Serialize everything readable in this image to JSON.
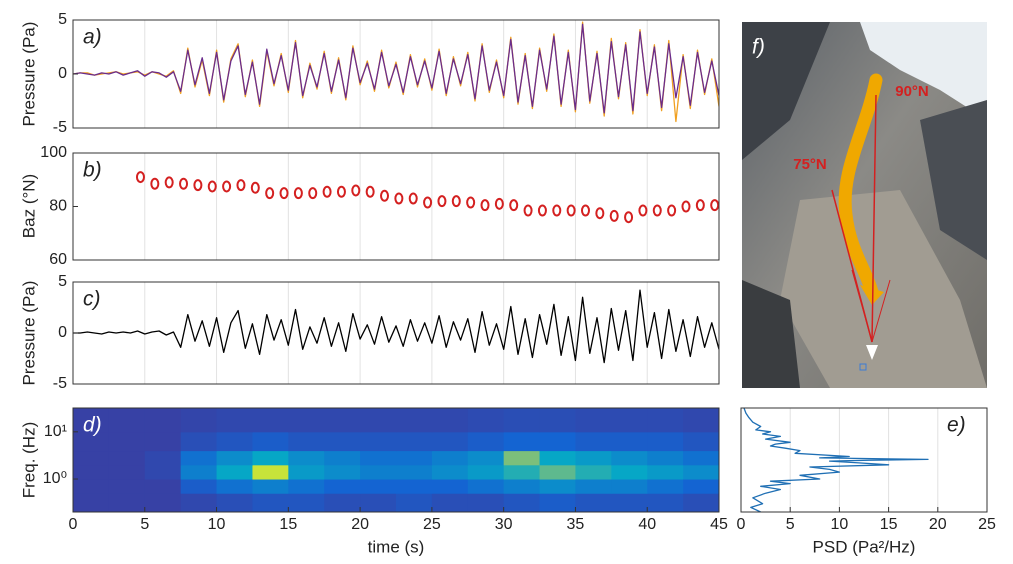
{
  "chart_data": [
    {
      "type": "line",
      "panel_label": "a)",
      "ylabel": "Pressure (Pa)",
      "xlim": [
        0,
        45
      ],
      "ylim": [
        -5,
        5
      ],
      "yticks": [
        -5,
        0,
        5
      ],
      "grid": true,
      "x": [
        0,
        0.5,
        1,
        1.5,
        2,
        2.5,
        3,
        3.5,
        4,
        4.5,
        5,
        5.5,
        6,
        6.5,
        7,
        7.5,
        8,
        8.5,
        9,
        9.5,
        10,
        10.5,
        11,
        11.5,
        12,
        12.5,
        13,
        13.5,
        14,
        14.5,
        15,
        15.5,
        16,
        16.5,
        17,
        17.5,
        18,
        18.5,
        19,
        19.5,
        20,
        20.5,
        21,
        21.5,
        22,
        22.5,
        23,
        23.5,
        24,
        24.5,
        25,
        25.5,
        26,
        26.5,
        27,
        27.5,
        28,
        28.5,
        29,
        29.5,
        30,
        30.5,
        31,
        31.5,
        32,
        32.5,
        33,
        33.5,
        34,
        34.5,
        35,
        35.5,
        36,
        36.5,
        37,
        37.5,
        38,
        38.5,
        39,
        39.5,
        40,
        40.5,
        41,
        41.5,
        42,
        42.5,
        43,
        43.5,
        44,
        44.5,
        45
      ],
      "series": [
        {
          "color": "#f0a020",
          "values": [
            0,
            0.1,
            0.1,
            -0.1,
            0,
            0.1,
            0.2,
            0,
            0.1,
            0.2,
            -0.1,
            0.2,
            0,
            -0.2,
            0.3,
            -1.8,
            2.4,
            -1.2,
            1.3,
            -2.0,
            2.2,
            -2.6,
            1.4,
            2.8,
            -2.1,
            1.3,
            -3.0,
            2.1,
            -1.1,
            1.9,
            -1.7,
            3.1,
            -2.2,
            1.0,
            -1.4,
            2.1,
            -1.8,
            1.5,
            -2.4,
            2.6,
            -1.0,
            1.2,
            -1.6,
            2.2,
            -1.3,
            1.1,
            -1.9,
            1.8,
            -1.2,
            1.4,
            -1.5,
            2.3,
            -2.0,
            1.6,
            -1.1,
            2.0,
            -2.5,
            2.8,
            -1.7,
            1.3,
            -2.2,
            3.4,
            -2.8,
            1.9,
            -3.2,
            2.4,
            -1.6,
            3.7,
            -3.0,
            2.2,
            -3.5,
            4.8,
            -2.7,
            2.1,
            -3.9,
            3.3,
            -2.3,
            2.9,
            -3.7,
            4.1,
            -2.0,
            2.7,
            -3.4,
            3.1,
            -4.4,
            1.8,
            -3.2,
            2.2,
            -1.9,
            1.4,
            -3.0
          ]
        },
        {
          "color": "#6a2c8c",
          "values": [
            0,
            0.1,
            0,
            -0.1,
            0.1,
            0,
            0.2,
            -0.1,
            0.1,
            0.3,
            -0.2,
            0.2,
            0.1,
            -0.3,
            0.2,
            -1.6,
            2.2,
            -1.0,
            1.5,
            -1.8,
            2.0,
            -2.4,
            1.2,
            2.6,
            -1.9,
            1.1,
            -2.8,
            2.3,
            -0.9,
            1.7,
            -1.5,
            2.9,
            -2.0,
            0.8,
            -1.2,
            1.9,
            -1.6,
            1.3,
            -2.2,
            2.4,
            -0.8,
            1.0,
            -1.4,
            2.0,
            -1.1,
            0.9,
            -1.7,
            1.6,
            -1.0,
            1.2,
            -1.3,
            2.1,
            -1.8,
            1.4,
            -0.9,
            1.8,
            -2.3,
            2.6,
            -1.5,
            1.1,
            -2.0,
            3.2,
            -2.6,
            1.7,
            -3.0,
            2.2,
            -1.4,
            3.5,
            -2.8,
            2.0,
            -3.3,
            4.6,
            -2.5,
            1.9,
            -3.6,
            3.0,
            -2.1,
            2.7,
            -3.4,
            3.9,
            -1.8,
            2.5,
            -3.1,
            2.8,
            -2.2,
            1.6,
            -2.9,
            2.0,
            -1.7,
            1.2,
            -2.0
          ]
        }
      ]
    },
    {
      "type": "scatter",
      "panel_label": "b)",
      "ylabel": "Baz (°N)",
      "xlim": [
        0,
        45
      ],
      "ylim": [
        60,
        100
      ],
      "yticks": [
        60,
        80,
        100
      ],
      "grid": true,
      "color": "#d42020",
      "x": [
        4.7,
        5.7,
        6.7,
        7.7,
        8.7,
        9.7,
        10.7,
        11.7,
        12.7,
        13.7,
        14.7,
        15.7,
        16.7,
        17.7,
        18.7,
        19.7,
        20.7,
        21.7,
        22.7,
        23.7,
        24.7,
        25.7,
        26.7,
        27.7,
        28.7,
        29.7,
        30.7,
        31.7,
        32.7,
        33.7,
        34.7,
        35.7,
        36.7,
        37.7,
        38.7,
        39.7,
        40.7,
        41.7,
        42.7,
        43.7,
        44.7
      ],
      "values": [
        91,
        88.5,
        89,
        88.5,
        88,
        87.5,
        87.5,
        88,
        87,
        85,
        85,
        85,
        85,
        85.5,
        85.5,
        86,
        85.5,
        84,
        83,
        83,
        81.5,
        82,
        82,
        81.5,
        80.5,
        81,
        80.5,
        78.5,
        78.5,
        78.5,
        78.5,
        78.5,
        77.5,
        76.5,
        76,
        78.5,
        78.5,
        78.5,
        80,
        80.5,
        80.5
      ]
    },
    {
      "type": "line",
      "panel_label": "c)",
      "ylabel": "Pressure (Pa)",
      "xlim": [
        0,
        45
      ],
      "ylim": [
        -5,
        5
      ],
      "yticks": [
        -5,
        0,
        5
      ],
      "grid": true,
      "x": [
        0,
        0.5,
        1,
        1.5,
        2,
        2.5,
        3,
        3.5,
        4,
        4.5,
        5,
        5.5,
        6,
        6.5,
        7,
        7.5,
        8,
        8.5,
        9,
        9.5,
        10,
        10.5,
        11,
        11.5,
        12,
        12.5,
        13,
        13.5,
        14,
        14.5,
        15,
        15.5,
        16,
        16.5,
        17,
        17.5,
        18,
        18.5,
        19,
        19.5,
        20,
        20.5,
        21,
        21.5,
        22,
        22.5,
        23,
        23.5,
        24,
        24.5,
        25,
        25.5,
        26,
        26.5,
        27,
        27.5,
        28,
        28.5,
        29,
        29.5,
        30,
        30.5,
        31,
        31.5,
        32,
        32.5,
        33,
        33.5,
        34,
        34.5,
        35,
        35.5,
        36,
        36.5,
        37,
        37.5,
        38,
        38.5,
        39,
        39.5,
        40,
        40.5,
        41,
        41.5,
        42,
        42.5,
        43,
        43.5,
        44,
        44.5,
        45
      ],
      "series": [
        {
          "color": "#000000",
          "values": [
            0,
            0,
            0.1,
            0,
            -0.1,
            0.1,
            0,
            0.1,
            0,
            0.2,
            -0.1,
            0.1,
            0.2,
            -0.2,
            0.1,
            -1.4,
            1.8,
            -0.8,
            1.2,
            -1.3,
            1.5,
            -1.9,
            1.0,
            2.2,
            -1.5,
            0.9,
            -2.1,
            1.8,
            -0.7,
            1.3,
            -1.2,
            2.3,
            -1.6,
            0.6,
            -1.0,
            1.5,
            -1.3,
            1.0,
            -1.8,
            1.9,
            -0.6,
            0.8,
            -1.1,
            1.6,
            -0.9,
            0.7,
            -1.3,
            1.3,
            -0.8,
            1.0,
            -1.0,
            1.7,
            -1.4,
            1.1,
            -0.7,
            1.4,
            -1.9,
            2.1,
            -1.2,
            0.9,
            -1.6,
            2.6,
            -2.1,
            1.4,
            -2.4,
            1.8,
            -1.1,
            2.8,
            -2.2,
            1.6,
            -2.7,
            3.5,
            -2.0,
            1.5,
            -2.9,
            2.4,
            -1.7,
            2.2,
            -2.7,
            4.2,
            -1.4,
            2.0,
            -2.5,
            2.3,
            -1.8,
            1.3,
            -2.3,
            1.6,
            -1.4,
            1.0,
            -1.6
          ]
        }
      ]
    },
    {
      "type": "heatmap",
      "panel_label": "d)",
      "ylabel": "Freq. (Hz)",
      "xlabel": "time (s)",
      "xlim": [
        0,
        45
      ],
      "xticks": [
        0,
        5,
        10,
        15,
        20,
        25,
        30,
        35,
        40,
        45
      ],
      "ylim": [
        0.2,
        32
      ],
      "log_y": true,
      "yticks": [
        {
          "value": 1,
          "label": "10⁰"
        },
        {
          "value": 10,
          "label": "10¹"
        }
      ],
      "xbins": [
        0,
        2.5,
        5,
        7.5,
        10,
        12.5,
        15,
        17.5,
        20,
        22.5,
        25,
        27.5,
        30,
        32.5,
        35,
        37.5,
        40,
        42.5,
        45
      ],
      "ybins": [
        0.2,
        0.5,
        1,
        2,
        4,
        10,
        32
      ],
      "z": [
        [
          0.05,
          0.05,
          0.05,
          0.1,
          0.15,
          0.2,
          0.2,
          0.15,
          0.15,
          0.2,
          0.15,
          0.15,
          0.2,
          0.25,
          0.2,
          0.2,
          0.2,
          0.15
        ],
        [
          0.05,
          0.05,
          0.05,
          0.25,
          0.35,
          0.4,
          0.35,
          0.3,
          0.3,
          0.3,
          0.3,
          0.35,
          0.4,
          0.45,
          0.4,
          0.4,
          0.35,
          0.3
        ],
        [
          0.05,
          0.05,
          0.1,
          0.4,
          0.55,
          0.9,
          0.5,
          0.45,
          0.4,
          0.4,
          0.45,
          0.5,
          0.6,
          0.7,
          0.6,
          0.55,
          0.5,
          0.45
        ],
        [
          0.05,
          0.05,
          0.1,
          0.35,
          0.45,
          0.55,
          0.45,
          0.4,
          0.35,
          0.35,
          0.4,
          0.45,
          0.75,
          0.55,
          0.5,
          0.45,
          0.4,
          0.35
        ],
        [
          0.05,
          0.05,
          0.05,
          0.15,
          0.2,
          0.25,
          0.2,
          0.2,
          0.2,
          0.2,
          0.2,
          0.25,
          0.3,
          0.3,
          0.25,
          0.25,
          0.25,
          0.2
        ],
        [
          0.05,
          0.05,
          0.05,
          0.08,
          0.1,
          0.1,
          0.1,
          0.1,
          0.1,
          0.1,
          0.1,
          0.12,
          0.14,
          0.14,
          0.12,
          0.12,
          0.12,
          0.1
        ]
      ]
    },
    {
      "type": "line",
      "orientation": "horizontal",
      "panel_label": "e)",
      "xlabel": "PSD (Pa²/Hz)",
      "xlim": [
        0,
        25
      ],
      "xticks": [
        0,
        5,
        10,
        15,
        20,
        25
      ],
      "ylim": [
        0.2,
        32
      ],
      "log_y": true,
      "grid": true,
      "y": [
        32,
        25,
        20,
        16,
        13,
        11,
        10,
        9,
        8,
        7,
        6,
        5.5,
        5,
        4.5,
        4,
        3.5,
        3,
        2.8,
        2.6,
        2.5,
        2.4,
        2.2,
        2,
        1.8,
        1.6,
        1.4,
        1.2,
        1,
        0.9,
        0.8,
        0.7,
        0.6,
        0.5,
        0.4,
        0.3,
        0.25,
        0.2
      ],
      "series": [
        {
          "color": "#1f6fb4",
          "values": [
            0.3,
            0.5,
            0.8,
            1.2,
            2.0,
            1.5,
            3.0,
            2.2,
            4.0,
            2.5,
            5.0,
            3.5,
            3.0,
            4.5,
            6.0,
            5.5,
            11,
            8,
            19,
            13,
            9,
            12,
            15,
            7,
            9,
            10,
            6,
            8,
            3,
            5,
            2,
            4,
            2.5,
            1.2,
            2.2,
            1.0,
            2.0
          ]
        }
      ]
    }
  ],
  "map": {
    "panel_label": "f)",
    "annotations": [
      "90°N",
      "75°N"
    ]
  }
}
